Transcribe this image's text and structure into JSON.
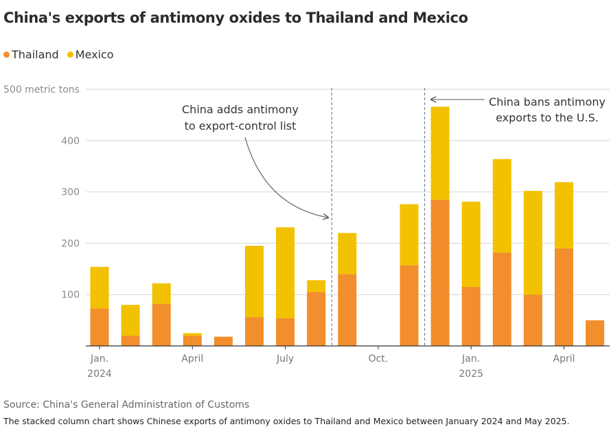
{
  "title": "China's exports of antimony oxides to Thailand and Mexico",
  "source": "Source: China's General Administration of Customs",
  "caption": "The stacked column chart shows Chinese exports of antimony oxides to Thailand and Mexico between January 2024 and May 2025.",
  "legend": [
    {
      "name": "Thailand",
      "color": "#f28e2b"
    },
    {
      "name": "Mexico",
      "color": "#f2c100"
    }
  ],
  "chart_data": {
    "type": "bar",
    "stacked": true,
    "categories": [
      "2024-01",
      "2024-02",
      "2024-03",
      "2024-04",
      "2024-05",
      "2024-06",
      "2024-07",
      "2024-08",
      "2024-09",
      "2024-10",
      "2024-11",
      "2024-12",
      "2025-01",
      "2025-02",
      "2025-03",
      "2025-04",
      "2025-05"
    ],
    "series": [
      {
        "name": "Thailand",
        "color": "#f28e2b",
        "values": [
          73,
          20,
          82,
          20,
          18,
          56,
          54,
          105,
          140,
          0,
          157,
          285,
          115,
          182,
          100,
          190,
          50
        ]
      },
      {
        "name": "Mexico",
        "color": "#f2c100",
        "values": [
          81,
          60,
          40,
          5,
          0,
          139,
          177,
          23,
          80,
          0,
          119,
          181,
          166,
          182,
          202,
          129,
          0
        ]
      }
    ],
    "ylim": [
      0,
      500
    ],
    "y_ticks": [
      {
        "value": 100,
        "label": "100"
      },
      {
        "value": 200,
        "label": "200"
      },
      {
        "value": 300,
        "label": "300"
      },
      {
        "value": 400,
        "label": "400"
      },
      {
        "value": 500,
        "label": "500 metric tons"
      }
    ],
    "x_ticks": [
      {
        "index": 0,
        "label": "Jan.",
        "sublabel": "2024"
      },
      {
        "index": 3,
        "label": "April",
        "sublabel": ""
      },
      {
        "index": 6,
        "label": "July",
        "sublabel": ""
      },
      {
        "index": 9,
        "label": "Oct.",
        "sublabel": ""
      },
      {
        "index": 12,
        "label": "Jan.",
        "sublabel": "2025"
      },
      {
        "index": 15,
        "label": "April",
        "sublabel": ""
      }
    ],
    "grid": true,
    "legend_position": "top-left",
    "annotations": [
      {
        "after_index": 7,
        "lines": [
          "China adds antimony",
          "to export-control list"
        ]
      },
      {
        "after_index": 10,
        "lines": [
          "China bans antimony",
          "exports to the U.S."
        ]
      }
    ]
  }
}
